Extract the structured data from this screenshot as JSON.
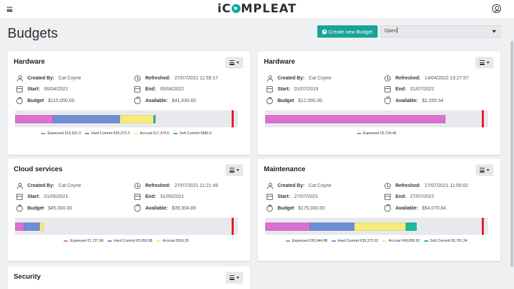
{
  "app": {
    "logo": "iCOMPLEAT"
  },
  "page": {
    "title": "Budgets",
    "create_button": "Create new Budget",
    "status_filter": "Open"
  },
  "field_labels": {
    "created_by": "Created By:",
    "refreshed": "Refreshed:",
    "start": "Start:",
    "end": "End:",
    "budget": "Budget",
    "available": "Available:"
  },
  "colors": {
    "expensed": "#dd6fd3",
    "hard_commit": "#6f8fd4",
    "accrual": "#f7eb7a",
    "soft_commit": "#1eb99f",
    "limit": "#e51922",
    "accent": "#18a497"
  },
  "cards": [
    {
      "title": "Hardware",
      "created_by": "Cat Coyne",
      "refreshed": "27/07/2021 11:55:17",
      "start": "06/04/2021",
      "end": "05/04/2022",
      "budget": "$115,000.00",
      "available": "$41,430.60",
      "segments": [
        {
          "key": "expensed",
          "fraction": 0.17
        },
        {
          "key": "hard_commit",
          "fraction": 0.3
        },
        {
          "key": "accrual",
          "fraction": 0.15
        },
        {
          "key": "soft_commit",
          "fraction": 0.01
        }
      ],
      "legend": [
        {
          "key": "expensed",
          "label": "Expensed €19,931.9"
        },
        {
          "key": "hard_commit",
          "label": "Hard Commit €35,372.3"
        },
        {
          "key": "accrual",
          "label": "Accrual €17,379.6"
        },
        {
          "key": "soft_commit",
          "label": "Soft Commit €885.6"
        }
      ]
    },
    {
      "title": "Hardware",
      "created_by": "Cat Coyne",
      "refreshed": "14/04/2022 13:27:57",
      "start": "01/07/2019",
      "end": "01/07/2022",
      "budget": "$12,000.00",
      "available": "$2,265.54",
      "segments": [
        {
          "key": "expensed",
          "fraction": 0.81
        }
      ],
      "legend": [
        {
          "key": "expensed",
          "label": "Expensed €9,734.46"
        }
      ]
    },
    {
      "title": "Cloud services",
      "created_by": "Cat Coyne",
      "refreshed": "27/07/2021 11:21:49",
      "start": "01/05/2021",
      "end": "31/05/2021",
      "budget": "$45,000.00",
      "available": "$39,304.86",
      "segments": [
        {
          "key": "expensed",
          "fraction": 0.04
        },
        {
          "key": "hard_commit",
          "fraction": 0.07
        },
        {
          "key": "accrual",
          "fraction": 0.02
        }
      ],
      "legend": [
        {
          "key": "expensed",
          "label": "Expensed €1,727.96"
        },
        {
          "key": "hard_commit",
          "label": "Hard Commit €3,050.98"
        },
        {
          "key": "accrual",
          "label": "Accrual €916.20"
        }
      ]
    },
    {
      "title": "Maintenance",
      "created_by": "Cat Coyne",
      "refreshed": "27/07/2021 11:50:02",
      "start": "27/07/2021",
      "end": "27/07/2022",
      "budget": "$175,000.00",
      "available": "$54,070.84",
      "segments": [
        {
          "key": "expensed",
          "fraction": 0.2
        },
        {
          "key": "hard_commit",
          "fraction": 0.2
        },
        {
          "key": "accrual",
          "fraction": 0.23
        },
        {
          "key": "soft_commit",
          "fraction": 0.05
        }
      ],
      "legend": [
        {
          "key": "expensed",
          "label": "Expensed €35,944.88"
        },
        {
          "key": "hard_commit",
          "label": "Hard Commit €35,372.32"
        },
        {
          "key": "accrual",
          "label": "Accrual €40,830.62"
        },
        {
          "key": "soft_commit",
          "label": "Soft Commit €8,781.34"
        }
      ]
    },
    {
      "title": "Security"
    }
  ]
}
